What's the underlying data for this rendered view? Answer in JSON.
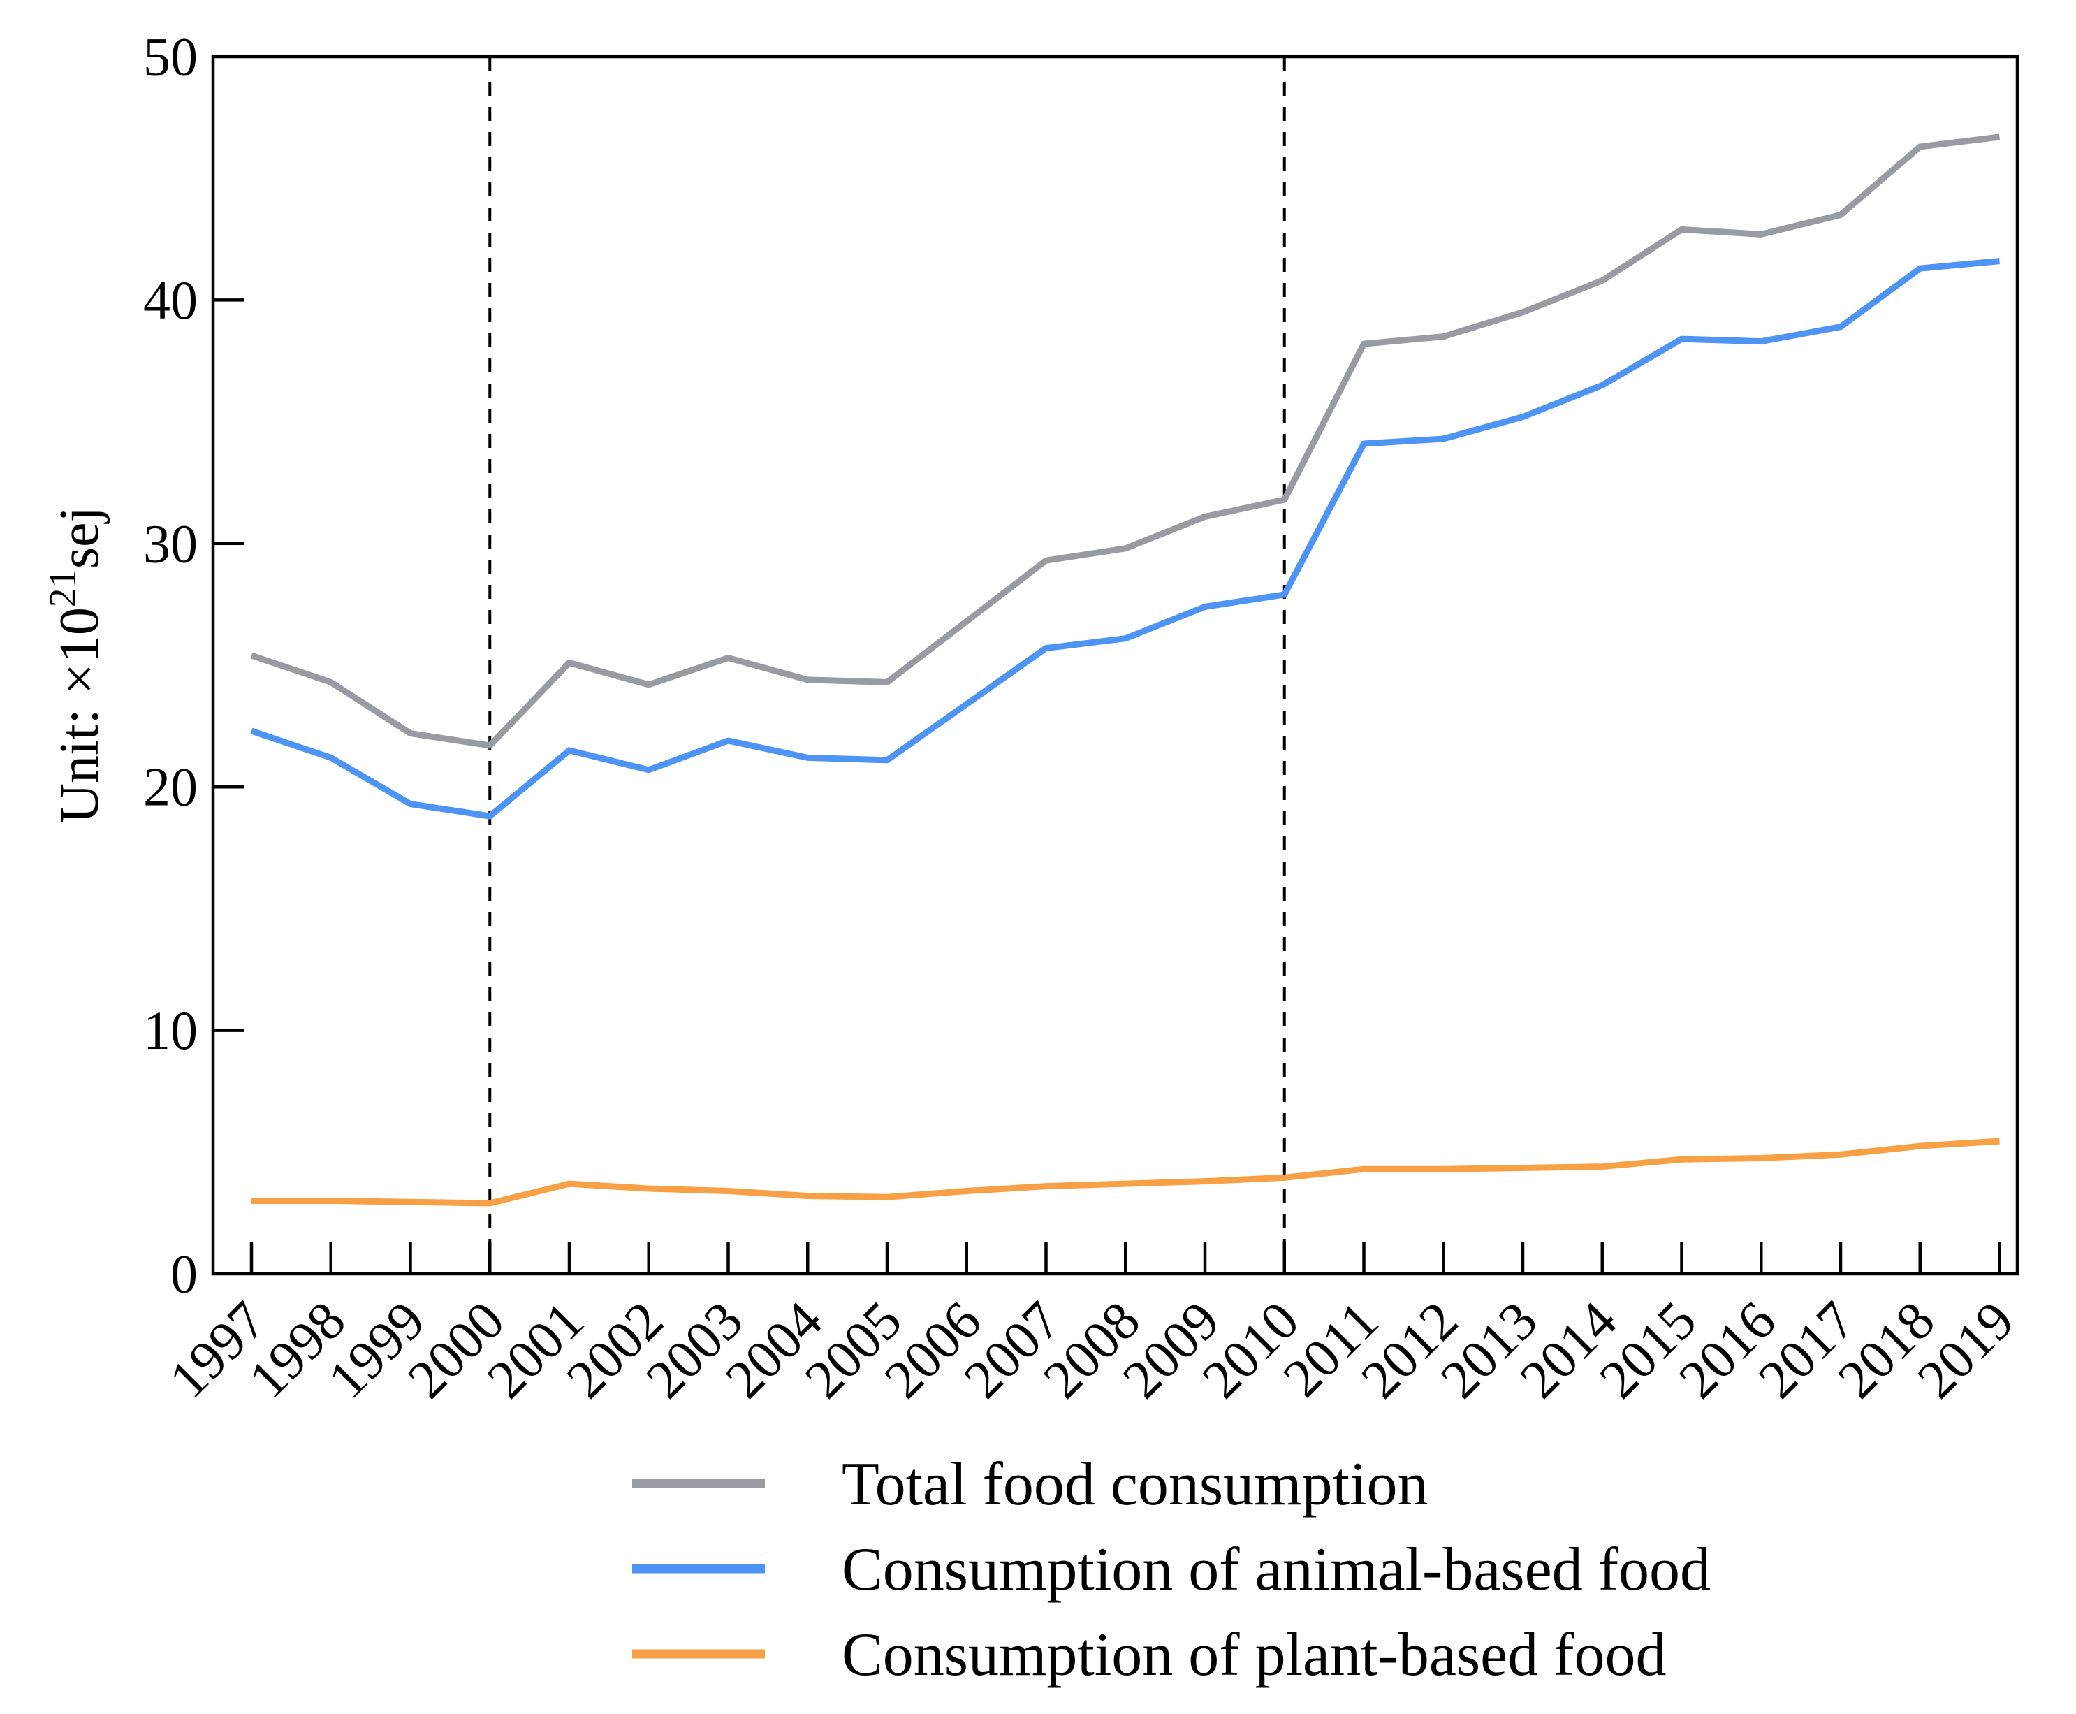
{
  "figure": {
    "background": "#ffffff",
    "axis_color": "#000000"
  },
  "chart_data": {
    "type": "line",
    "title": "",
    "xlabel": "",
    "ylabel_parts": {
      "prefix": "Unit: ×10",
      "superscript": "21",
      "suffix": "sej"
    },
    "x": [
      1997,
      1998,
      1999,
      2000,
      2001,
      2002,
      2003,
      2004,
      2005,
      2006,
      2007,
      2008,
      2009,
      2010,
      2011,
      2012,
      2013,
      2014,
      2015,
      2016,
      2017,
      2018,
      2019
    ],
    "ylim": [
      0,
      50
    ],
    "yticks": [
      0,
      10,
      20,
      30,
      40,
      50
    ],
    "grid": false,
    "legend_position": "bottom",
    "reference_lines": [
      {
        "x": 2000,
        "style": "dashed",
        "color": "#000000"
      },
      {
        "x": 2010,
        "style": "dashed",
        "color": "#000000"
      }
    ],
    "series": [
      {
        "name": "Total food consumption",
        "color": "#989ba1",
        "values": [
          25.4,
          24.3,
          22.2,
          21.7,
          25.1,
          24.2,
          25.3,
          24.4,
          24.3,
          26.8,
          29.3,
          29.8,
          31.1,
          31.8,
          38.2,
          38.5,
          39.5,
          40.8,
          42.9,
          42.7,
          43.5,
          46.3,
          46.7
        ]
      },
      {
        "name": "Consumption of animal-based food",
        "color": "#4d94f5",
        "values": [
          22.3,
          21.2,
          19.3,
          18.8,
          21.5,
          20.7,
          21.9,
          21.2,
          21.1,
          23.4,
          25.7,
          26.1,
          27.4,
          27.9,
          34.1,
          34.3,
          35.2,
          36.5,
          38.4,
          38.3,
          38.9,
          41.3,
          41.6
        ]
      },
      {
        "name": "Consumption of plant-based food",
        "color": "#f8a046",
        "values": [
          3.0,
          3.0,
          2.95,
          2.9,
          3.7,
          3.5,
          3.4,
          3.2,
          3.15,
          3.4,
          3.6,
          3.7,
          3.8,
          3.95,
          4.3,
          4.3,
          4.35,
          4.4,
          4.7,
          4.75,
          4.9,
          5.25,
          5.45
        ]
      }
    ]
  }
}
